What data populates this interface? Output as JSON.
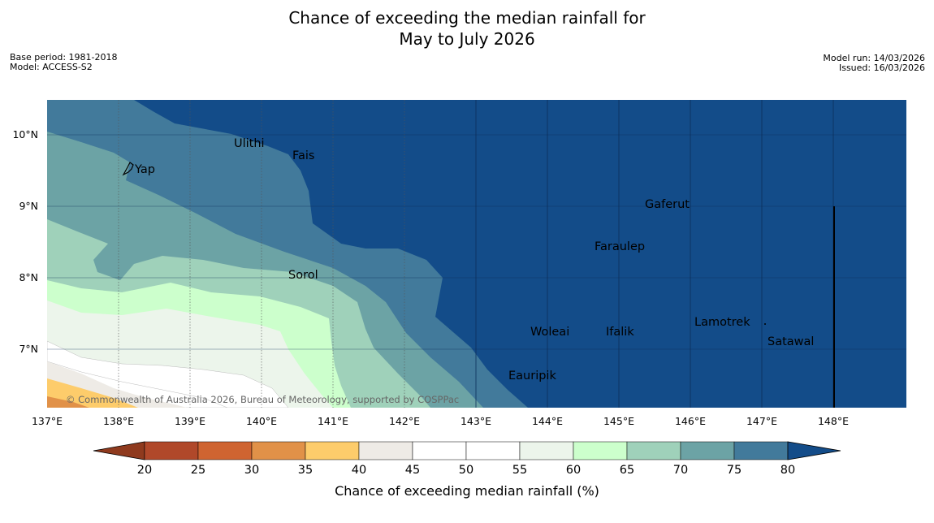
{
  "title": {
    "line1": "Chance of exceeding the median rainfall for",
    "line2": "May to July 2026"
  },
  "meta_left": {
    "base_period": "Base period: 1981-2018",
    "model": "Model: ACCESS-S2"
  },
  "meta_right": {
    "model_run": "Model run: 14/03/2026",
    "issued": "Issued: 16/03/2026"
  },
  "copyright": "© Commonwealth of Australia 2026, Bureau of Meteorology, supported by COSPPac",
  "map": {
    "lon_range": [
      137,
      149
    ],
    "lat_range": [
      6.2,
      10.5
    ],
    "lon_ticks": [
      "137°E",
      "138°E",
      "139°E",
      "140°E",
      "141°E",
      "142°E",
      "143°E",
      "144°E",
      "145°E",
      "146°E",
      "147°E",
      "148°E"
    ],
    "lat_ticks": [
      "10°N",
      "9°N",
      "8°N",
      "7°N"
    ],
    "places": [
      "Ulithi",
      "Fais",
      "Yap",
      "Gaferut",
      "Faraulep",
      "Sorol",
      "Woleai",
      "Ifalik",
      "Lamotrek",
      "Satawal",
      "Eauripik"
    ]
  },
  "colorbar": {
    "title": "Chance of exceeding median rainfall (%)",
    "ticks": [
      "20",
      "25",
      "30",
      "35",
      "40",
      "45",
      "50",
      "55",
      "60",
      "65",
      "70",
      "75",
      "80"
    ],
    "colors": [
      "#8f3a1e",
      "#b0482a",
      "#cf6431",
      "#e19148",
      "#fdcc6b",
      "#eeebe6",
      "#ffffff",
      "#ffffff",
      "#ecf5eb",
      "#ccffcc",
      "#9fd1ba",
      "#6ca3a5",
      "#427a9b",
      "#134c89"
    ]
  }
}
